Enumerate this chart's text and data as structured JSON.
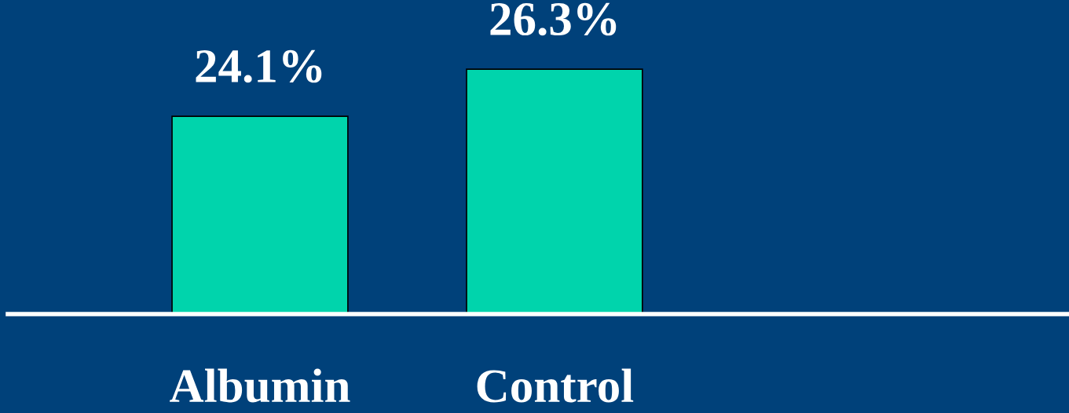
{
  "chart_data": {
    "type": "bar",
    "categories": [
      "Albumin",
      "Control"
    ],
    "values": [
      24.1,
      26.3
    ],
    "color": "#00d4ac",
    "value_labels": [
      "24.1%",
      "26.3%"
    ],
    "ylim": [
      14.86,
      29.53
    ],
    "tick_labels": "x",
    "grid": false,
    "legend": false
  }
}
